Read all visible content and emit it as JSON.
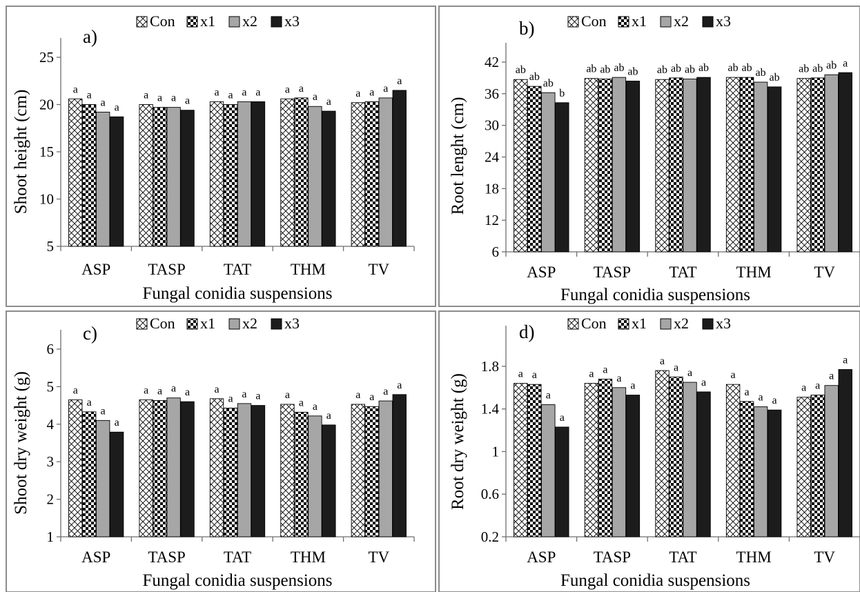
{
  "legend_series": [
    "Con",
    "x1",
    "x2",
    "x3"
  ],
  "chart_data": [
    {
      "type": "bar",
      "panel_label": "a)",
      "categories": [
        "ASP",
        "TASP",
        "TAT",
        "THM",
        "TV"
      ],
      "xlabel": "Fungal conidia suspensions",
      "ylabel": "Shoot height (cm)",
      "ylim": [
        5,
        25
      ],
      "yticks": [
        5,
        10,
        15,
        20,
        25
      ],
      "legend_placement": "top",
      "grid": false,
      "series": [
        {
          "name": "Con",
          "values": [
            20.6,
            20.0,
            20.3,
            20.6,
            20.2
          ],
          "letters": [
            "a",
            "a",
            "a",
            "a",
            "a"
          ]
        },
        {
          "name": "x1",
          "values": [
            20.0,
            19.7,
            20.0,
            20.7,
            20.3
          ],
          "letters": [
            "a",
            "a",
            "a",
            "a",
            "a"
          ]
        },
        {
          "name": "x2",
          "values": [
            19.2,
            19.7,
            20.3,
            19.8,
            20.7
          ],
          "letters": [
            "a",
            "a",
            "a",
            "a",
            "a"
          ]
        },
        {
          "name": "x3",
          "values": [
            18.7,
            19.4,
            20.3,
            19.3,
            21.5
          ],
          "letters": [
            "a",
            "a",
            "a",
            "a",
            "a"
          ]
        }
      ]
    },
    {
      "type": "bar",
      "panel_label": "b)",
      "categories": [
        "ASP",
        "TASP",
        "TAT",
        "THM",
        "TV"
      ],
      "xlabel": "Fungal conidia suspensions",
      "ylabel": "Root lenght (cm)",
      "ylim": [
        6,
        42
      ],
      "yticks": [
        6,
        12,
        18,
        24,
        30,
        36,
        42
      ],
      "legend_placement": "top",
      "grid": false,
      "series": [
        {
          "name": "Con",
          "values": [
            38.7,
            38.9,
            38.7,
            39.1,
            38.9
          ],
          "letters": [
            "ab",
            "ab",
            "ab",
            "ab",
            "ab"
          ]
        },
        {
          "name": "x1",
          "values": [
            37.4,
            38.8,
            39.0,
            39.1,
            39.0
          ],
          "letters": [
            "ab",
            "ab",
            "ab",
            "ab",
            "ab"
          ]
        },
        {
          "name": "x2",
          "values": [
            36.2,
            39.1,
            38.8,
            38.2,
            39.6
          ],
          "letters": [
            "ab",
            "ab",
            "ab",
            "ab",
            "ab"
          ]
        },
        {
          "name": "x3",
          "values": [
            34.3,
            38.4,
            39.1,
            37.3,
            40.0
          ],
          "letters": [
            "b",
            "ab",
            "ab",
            "ab",
            "a"
          ]
        }
      ]
    },
    {
      "type": "bar",
      "panel_label": "c)",
      "categories": [
        "ASP",
        "TASP",
        "TAT",
        "THM",
        "TV"
      ],
      "xlabel": "Fungal conidia suspensions",
      "ylabel": "Shoot dry weight (g)",
      "ylim": [
        1,
        6
      ],
      "yticks": [
        1,
        2,
        3,
        4,
        5,
        6
      ],
      "legend_placement": "top",
      "grid": false,
      "series": [
        {
          "name": "Con",
          "values": [
            4.65,
            4.65,
            4.68,
            4.53,
            4.53
          ],
          "letters": [
            "a",
            "a",
            "a",
            "a",
            "a"
          ]
        },
        {
          "name": "x1",
          "values": [
            4.33,
            4.63,
            4.43,
            4.32,
            4.47
          ],
          "letters": [
            "a",
            "a",
            "a",
            "a",
            "a"
          ]
        },
        {
          "name": "x2",
          "values": [
            4.1,
            4.7,
            4.55,
            4.22,
            4.62
          ],
          "letters": [
            "a",
            "a",
            "a",
            "a",
            "a"
          ]
        },
        {
          "name": "x3",
          "values": [
            3.79,
            4.6,
            4.5,
            3.98,
            4.79
          ],
          "letters": [
            "a",
            "a",
            "a",
            "a",
            "a"
          ]
        }
      ]
    },
    {
      "type": "bar",
      "panel_label": "d)",
      "categories": [
        "ASP",
        "TASP",
        "TAT",
        "THM",
        "TV"
      ],
      "xlabel": "Fungal conidia suspensions",
      "ylabel": "Root dry weight (g)",
      "ylim": [
        0.2,
        2.0
      ],
      "yticks": [
        0.2,
        0.6,
        1,
        1.4,
        1.8
      ],
      "legend_placement": "top",
      "grid": false,
      "series": [
        {
          "name": "Con",
          "values": [
            1.64,
            1.64,
            1.76,
            1.63,
            1.51
          ],
          "letters": [
            "a",
            "a",
            "a",
            "a",
            "a"
          ]
        },
        {
          "name": "x1",
          "values": [
            1.63,
            1.68,
            1.7,
            1.47,
            1.53
          ],
          "letters": [
            "a",
            "a",
            "a",
            "a",
            "a"
          ]
        },
        {
          "name": "x2",
          "values": [
            1.44,
            1.6,
            1.65,
            1.42,
            1.62
          ],
          "letters": [
            "a",
            "a",
            "a",
            "a",
            "a"
          ]
        },
        {
          "name": "x3",
          "values": [
            1.23,
            1.53,
            1.56,
            1.39,
            1.77
          ],
          "letters": [
            "a",
            "a",
            "a",
            "a",
            "a"
          ]
        }
      ]
    }
  ]
}
